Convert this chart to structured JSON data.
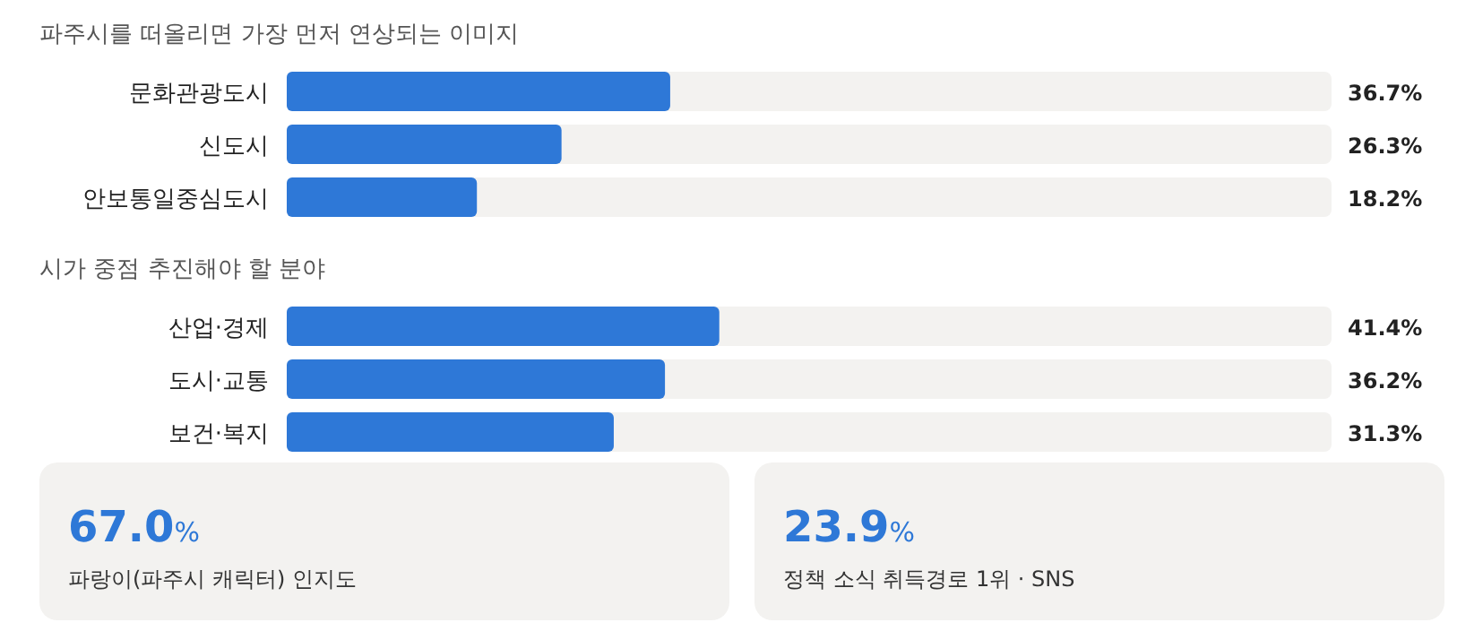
{
  "chart_data": [
    {
      "type": "bar",
      "orientation": "horizontal",
      "title": "파주시를 떠올리면 가장 먼저 연상되는 이미지",
      "categories": [
        "문화관광도시",
        "신도시",
        "안보통일중심도시"
      ],
      "values": [
        36.7,
        26.3,
        18.2
      ],
      "value_labels": [
        "36.7%",
        "26.3%",
        "18.2%"
      ],
      "color": "#2e78d7",
      "xlim": [
        0,
        100
      ],
      "tick_labels": "y"
    },
    {
      "type": "bar",
      "orientation": "horizontal",
      "title": "시가 중점 추진해야 할 분야",
      "categories": [
        "산업·경제",
        "도시·교통",
        "보건·복지"
      ],
      "values": [
        41.4,
        36.2,
        31.3
      ],
      "value_labels": [
        "41.4%",
        "36.2%",
        "31.3%"
      ],
      "color": "#2e78d7",
      "xlim": [
        0,
        100
      ],
      "tick_labels": "y"
    },
    {
      "type": "other",
      "title": "67.0%",
      "subtitle": "파랑이(파주시 캐릭터) 인지도"
    },
    {
      "type": "other",
      "title": "23.9%",
      "subtitle": "정책 소식 취득경로 1위 · SNS"
    }
  ]
}
